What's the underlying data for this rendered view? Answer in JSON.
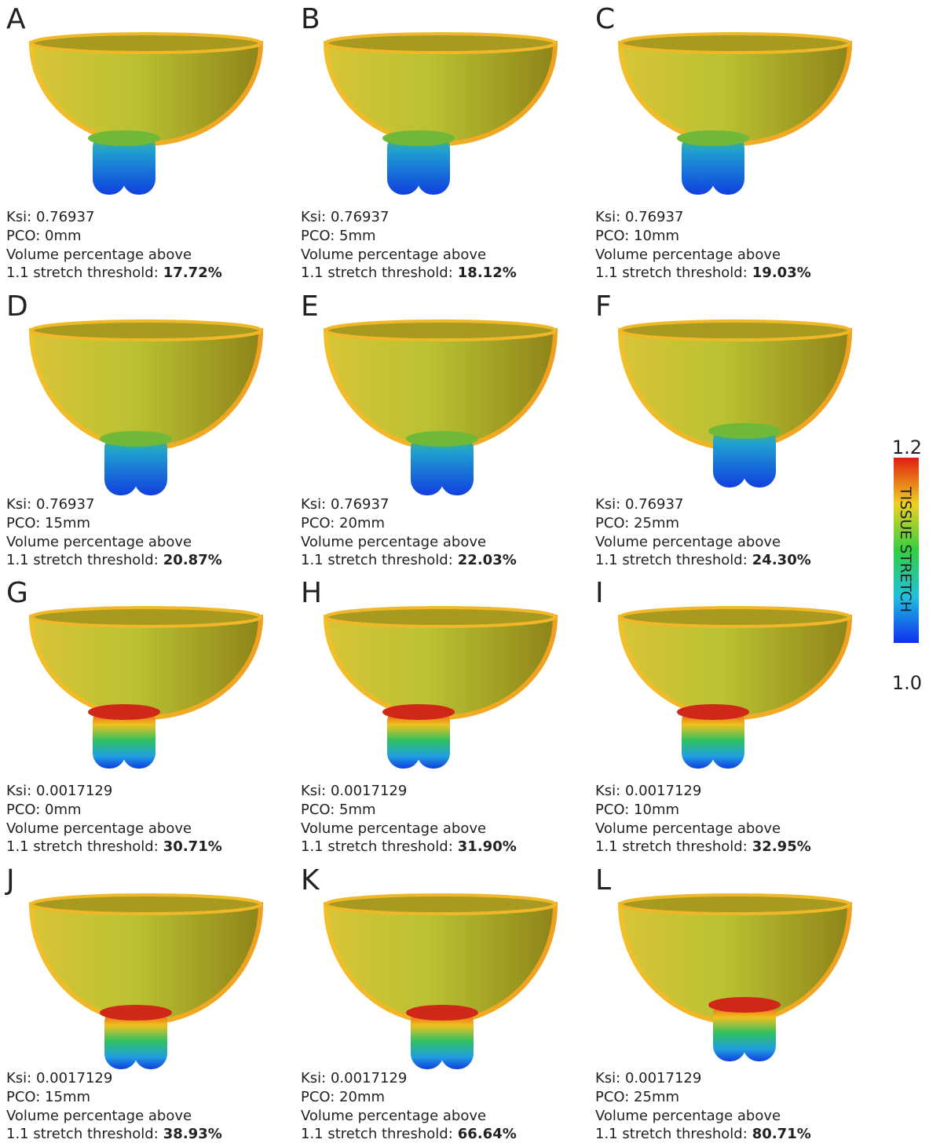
{
  "panels": [
    {
      "label": "A",
      "ksi": "Ksi: 0.76937",
      "pco": "PCO: 0mm",
      "line3": "Volume percentage above",
      "line4": "1.1 stretch threshold:",
      "value": "17.72%"
    },
    {
      "label": "B",
      "ksi": "Ksi: 0.76937",
      "pco": "PCO: 5mm",
      "line3": "Volume percentage above",
      "line4": "1.1 stretch threshold:",
      "value": "18.12%"
    },
    {
      "label": "C",
      "ksi": "Ksi: 0.76937",
      "pco": "PCO: 10mm",
      "line3": "Volume percentage above",
      "line4": "1.1 stretch threshold:",
      "value": "19.03%"
    },
    {
      "label": "D",
      "ksi": "Ksi: 0.76937",
      "pco": "PCO: 15mm",
      "line3": "Volume percentage above",
      "line4": "1.1 stretch threshold:",
      "value": "20.87%"
    },
    {
      "label": "E",
      "ksi": "Ksi: 0.76937",
      "pco": "PCO: 20mm",
      "line3": "Volume percentage above",
      "line4": "1.1 stretch threshold:",
      "value": "22.03%"
    },
    {
      "label": "F",
      "ksi": "Ksi: 0.76937",
      "pco": "PCO: 25mm",
      "line3": "Volume percentage above",
      "line4": "1.1 stretch threshold:",
      "value": "24.30%"
    },
    {
      "label": "G",
      "ksi": "Ksi: 0.0017129",
      "pco": "PCO: 0mm",
      "line3": "Volume percentage above",
      "line4": "1.1 stretch threshold:",
      "value": "30.71%"
    },
    {
      "label": "H",
      "ksi": "Ksi: 0.0017129",
      "pco": "PCO: 5mm",
      "line3": "Volume percentage above",
      "line4": "1.1 stretch threshold:",
      "value": "31.90%"
    },
    {
      "label": "I",
      "ksi": "Ksi: 0.0017129",
      "pco": "PCO: 10mm",
      "line3": "Volume percentage above",
      "line4": "1.1 stretch threshold:",
      "value": "32.95%"
    },
    {
      "label": "J",
      "ksi": "Ksi: 0.0017129",
      "pco": "PCO: 15mm",
      "line3": "Volume percentage above",
      "line4": "1.1 stretch threshold:",
      "value": "38.93%"
    },
    {
      "label": "K",
      "ksi": "Ksi: 0.0017129",
      "pco": "PCO: 20mm",
      "line3": "Volume percentage above",
      "line4": "1.1 stretch threshold:",
      "value": "66.64%"
    },
    {
      "label": "L",
      "ksi": "Ksi: 0.0017129",
      "pco": "PCO: 25mm",
      "line3": "Volume percentage above",
      "line4": "1.1 stretch threshold:",
      "value": "80.71%"
    }
  ],
  "colorbar": {
    "max": "1.2",
    "min": "1.0",
    "title": "TISSUE STRETCH"
  }
}
